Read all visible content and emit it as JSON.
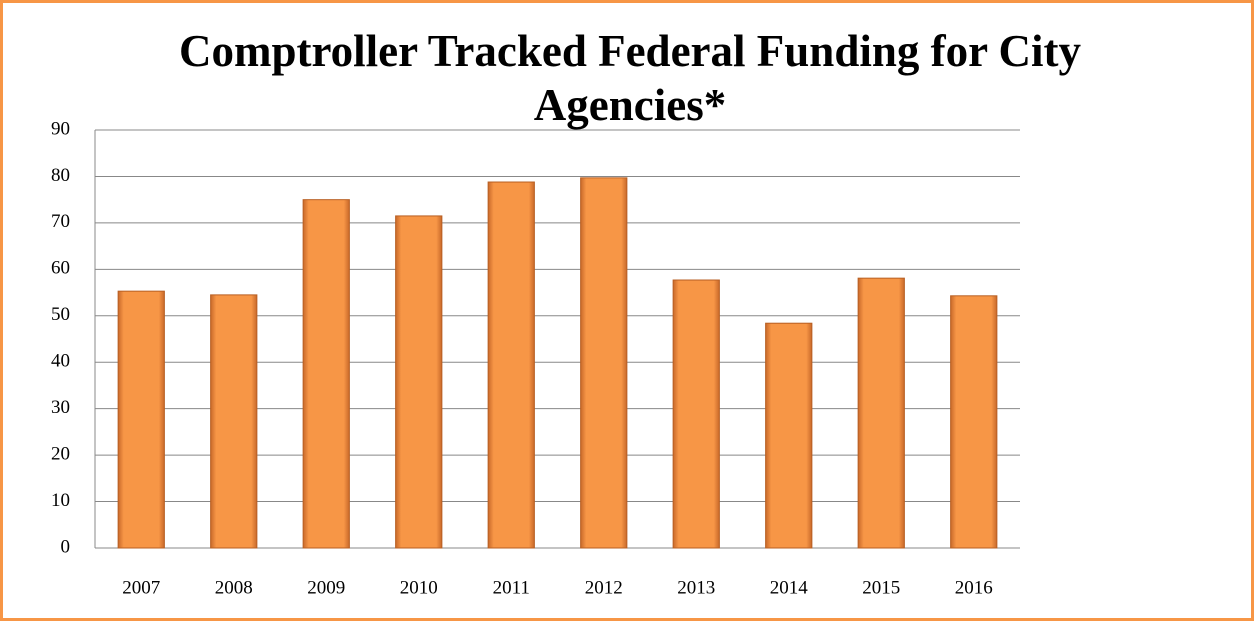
{
  "chart_data": {
    "type": "bar",
    "title": "Comptroller Tracked Federal Funding for City Agencies*",
    "categories": [
      "2007",
      "2008",
      "2009",
      "2010",
      "2011",
      "2012",
      "2013",
      "2014",
      "2015",
      "2016"
    ],
    "values": [
      55.3,
      54.5,
      75,
      71.5,
      78.8,
      79.7,
      57.7,
      48.4,
      58.1,
      54.3
    ],
    "color": "#f79646",
    "ylim": [
      0,
      90
    ],
    "yticks": [
      0,
      10,
      20,
      30,
      40,
      50,
      60,
      70,
      80,
      90
    ],
    "grid": true
  }
}
